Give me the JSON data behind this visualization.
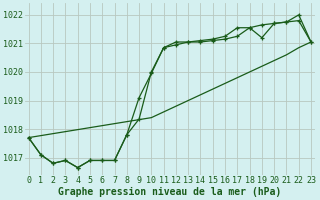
{
  "title": "Graphe pression niveau de la mer (hPa)",
  "background_color": "#d4f0f0",
  "grid_color": "#b8c8c0",
  "line_color": "#1a5c1a",
  "x_ticks": [
    0,
    1,
    2,
    3,
    4,
    5,
    6,
    7,
    8,
    9,
    10,
    11,
    12,
    13,
    14,
    15,
    16,
    17,
    18,
    19,
    20,
    21,
    22,
    23
  ],
  "y_ticks": [
    1017,
    1018,
    1019,
    1020,
    1021,
    1022
  ],
  "ylim": [
    1016.4,
    1022.4
  ],
  "xlim": [
    -0.3,
    23.3
  ],
  "series1": [
    1017.7,
    1017.1,
    1016.8,
    1016.9,
    1016.65,
    1016.9,
    1016.9,
    1016.9,
    1017.8,
    1018.35,
    1020.0,
    1020.85,
    1021.05,
    1021.05,
    1021.05,
    1021.1,
    1021.15,
    1021.25,
    1021.55,
    1021.2,
    1021.7,
    1021.75,
    1022.0,
    1021.05
  ],
  "series2": [
    1017.7,
    1017.1,
    1016.8,
    1016.9,
    1016.65,
    1016.9,
    1016.9,
    1016.9,
    1017.8,
    1019.1,
    1019.95,
    1020.85,
    1020.95,
    1021.05,
    1021.1,
    1021.15,
    1021.25,
    1021.55,
    1021.55,
    1021.65,
    1021.7,
    1021.75,
    1021.8,
    1021.05
  ],
  "series_linear": [
    1017.7,
    1017.77,
    1017.84,
    1017.91,
    1017.98,
    1018.05,
    1018.12,
    1018.19,
    1018.26,
    1018.33,
    1018.4,
    1018.6,
    1018.8,
    1019.0,
    1019.2,
    1019.4,
    1019.6,
    1019.8,
    1020.0,
    1020.2,
    1020.4,
    1020.6,
    1020.85,
    1021.05
  ],
  "title_fontsize": 7,
  "tick_fontsize": 6
}
